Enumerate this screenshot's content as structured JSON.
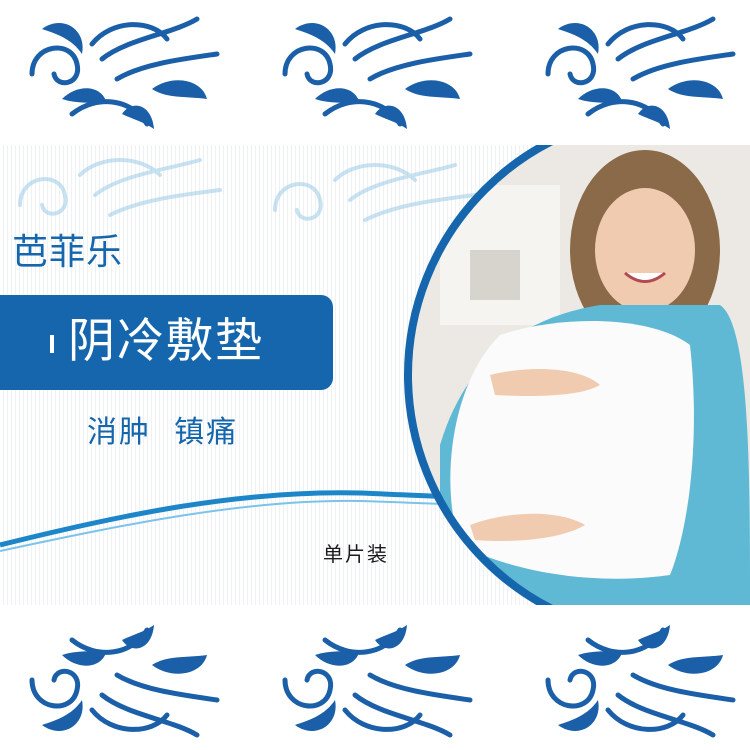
{
  "brand": "芭菲乐",
  "title": "阴冷敷垫",
  "subtitle": "消肿  镇痛",
  "pack": "单片装",
  "colors": {
    "primary": "#1566ad",
    "ornament": "#1a5fa8",
    "ornament_light": "#9ccbe6",
    "photo_ring": "#1566ad"
  },
  "icons": [
    "ornament-flourish",
    "pregnant-woman-photo"
  ]
}
